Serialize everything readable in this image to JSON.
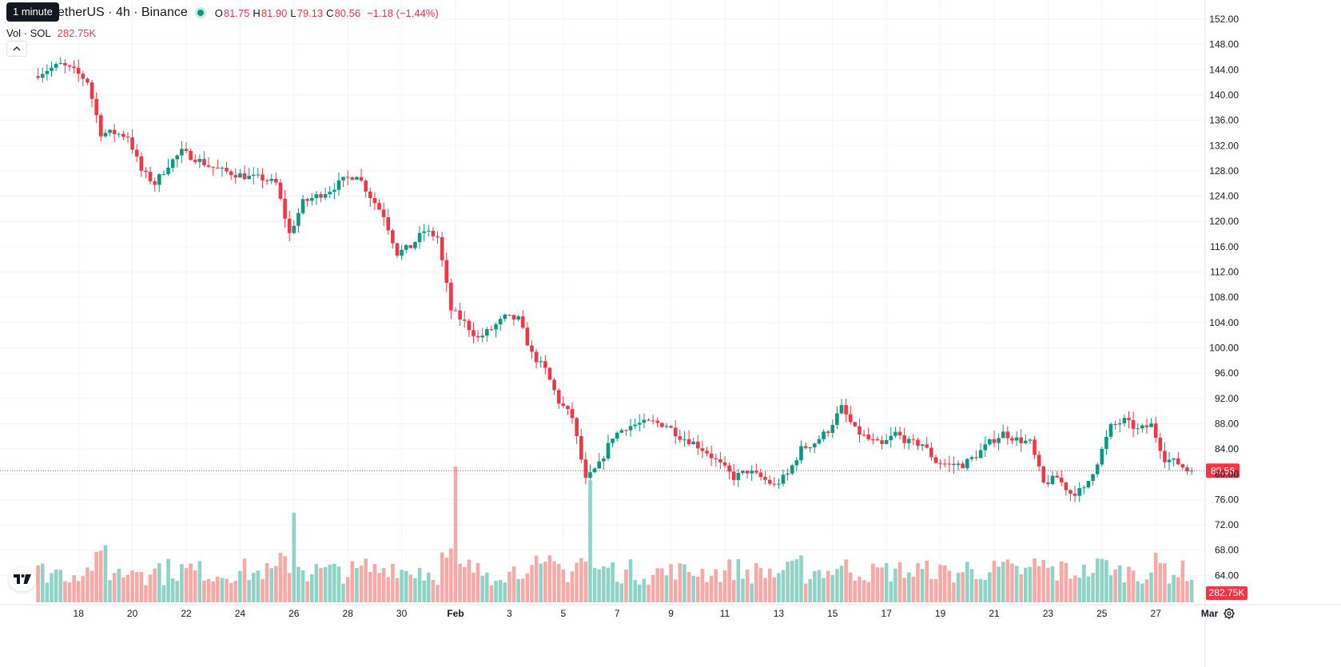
{
  "header": {
    "symbol_title": "TetherUS · 4h · Binance",
    "tooltip": "1 minute",
    "ohlc": {
      "open_label": "O",
      "open": "81.75",
      "high_label": "H",
      "high": "81.90",
      "low_label": "L",
      "low": "79.13",
      "close_label": "C",
      "close": "80.56",
      "change": "−1.18 (−1.44%)"
    },
    "volume": {
      "label": "Vol · SOL",
      "value": "282.75K"
    },
    "collapse_icon": "chevron-up-icon"
  },
  "colors": {
    "up": "#089981",
    "down": "#F23645",
    "up_volume": "#8fd3c6",
    "down_volume": "#f7a9a7",
    "grid": "#f0f3fa",
    "axis_text": "#131722",
    "price_line": "#F23645"
  },
  "chart_data": {
    "type": "candlestick",
    "interval": "4h",
    "y_axis": {
      "range": [
        58,
        154
      ],
      "ticks": [
        "152.00",
        "148.00",
        "144.00",
        "140.00",
        "136.00",
        "132.00",
        "128.00",
        "124.00",
        "120.00",
        "116.00",
        "112.00",
        "108.00",
        "104.00",
        "100.00",
        "96.00",
        "92.00",
        "88.00",
        "84.00",
        "80.00",
        "76.00",
        "72.00",
        "68.00",
        "64.00",
        "60.00"
      ]
    },
    "x_axis": {
      "tick_labels": [
        "18",
        "20",
        "22",
        "24",
        "26",
        "28",
        "30",
        "Feb",
        "3",
        "5",
        "7",
        "9",
        "11",
        "13",
        "15",
        "17",
        "19",
        "21",
        "23",
        "25",
        "27",
        "Mar"
      ],
      "tick_days": [
        1,
        3,
        5,
        7,
        9,
        11,
        13,
        15,
        17,
        19,
        21,
        23,
        25,
        27,
        29,
        31,
        33,
        35,
        37,
        39,
        41,
        43
      ]
    },
    "last_price": {
      "value": 80.56,
      "label": "80.56"
    },
    "last_volume": {
      "label": "282.75K"
    },
    "volume_max": 1.0,
    "daily_path": [
      {
        "day": -0.5,
        "price": 143.0
      },
      {
        "day": 0.0,
        "price": 144.0
      },
      {
        "day": 0.5,
        "price": 144.8
      },
      {
        "day": 1.0,
        "price": 143.8
      },
      {
        "day": 1.5,
        "price": 142.2
      },
      {
        "day": 2.0,
        "price": 134.0
      },
      {
        "day": 2.5,
        "price": 134.0
      },
      {
        "day": 3.0,
        "price": 133.5
      },
      {
        "day": 3.5,
        "price": 128.0
      },
      {
        "day": 4.0,
        "price": 126.0
      },
      {
        "day": 4.5,
        "price": 129.0
      },
      {
        "day": 5.0,
        "price": 131.0
      },
      {
        "day": 5.5,
        "price": 130.0
      },
      {
        "day": 6.0,
        "price": 128.8
      },
      {
        "day": 6.5,
        "price": 128.0
      },
      {
        "day": 7.0,
        "price": 127.5
      },
      {
        "day": 7.5,
        "price": 127.0
      },
      {
        "day": 8.0,
        "price": 126.8
      },
      {
        "day": 8.5,
        "price": 126.0
      },
      {
        "day": 9.0,
        "price": 118.0
      },
      {
        "day": 9.5,
        "price": 123.0
      },
      {
        "day": 10.0,
        "price": 124.0
      },
      {
        "day": 10.5,
        "price": 125.0
      },
      {
        "day": 11.0,
        "price": 126.5
      },
      {
        "day": 11.5,
        "price": 127.5
      },
      {
        "day": 12.0,
        "price": 124.0
      },
      {
        "day": 12.5,
        "price": 121.0
      },
      {
        "day": 13.0,
        "price": 115.0
      },
      {
        "day": 13.5,
        "price": 116.0
      },
      {
        "day": 14.0,
        "price": 118.5
      },
      {
        "day": 14.5,
        "price": 117.5
      },
      {
        "day": 15.0,
        "price": 106.0
      },
      {
        "day": 15.5,
        "price": 104.0
      },
      {
        "day": 16.0,
        "price": 101.5
      },
      {
        "day": 16.5,
        "price": 103.0
      },
      {
        "day": 17.0,
        "price": 104.8
      },
      {
        "day": 17.5,
        "price": 104.5
      },
      {
        "day": 18.0,
        "price": 99.0
      },
      {
        "day": 18.5,
        "price": 96.5
      },
      {
        "day": 19.0,
        "price": 91.5
      },
      {
        "day": 19.5,
        "price": 89.0
      },
      {
        "day": 20.0,
        "price": 79.0
      },
      {
        "day": 20.5,
        "price": 81.5
      },
      {
        "day": 21.0,
        "price": 86.0
      },
      {
        "day": 21.5,
        "price": 87.5
      },
      {
        "day": 22.0,
        "price": 88.0
      },
      {
        "day": 22.5,
        "price": 88.2
      },
      {
        "day": 23.0,
        "price": 87.8
      },
      {
        "day": 23.5,
        "price": 86.0
      },
      {
        "day": 24.0,
        "price": 85.0
      },
      {
        "day": 24.5,
        "price": 83.5
      },
      {
        "day": 25.0,
        "price": 81.5
      },
      {
        "day": 25.5,
        "price": 79.5
      },
      {
        "day": 26.0,
        "price": 80.5
      },
      {
        "day": 26.5,
        "price": 79.5
      },
      {
        "day": 27.0,
        "price": 78.2
      },
      {
        "day": 27.5,
        "price": 80.0
      },
      {
        "day": 28.0,
        "price": 84.0
      },
      {
        "day": 28.5,
        "price": 85.0
      },
      {
        "day": 29.0,
        "price": 87.0
      },
      {
        "day": 29.5,
        "price": 90.5
      },
      {
        "day": 30.0,
        "price": 87.0
      },
      {
        "day": 30.5,
        "price": 85.5
      },
      {
        "day": 31.0,
        "price": 84.5
      },
      {
        "day": 31.5,
        "price": 86.5
      },
      {
        "day": 32.0,
        "price": 85.0
      },
      {
        "day": 32.5,
        "price": 84.8
      },
      {
        "day": 33.0,
        "price": 82.0
      },
      {
        "day": 33.5,
        "price": 81.5
      },
      {
        "day": 34.0,
        "price": 81.5
      },
      {
        "day": 34.5,
        "price": 83.0
      },
      {
        "day": 35.0,
        "price": 85.0
      },
      {
        "day": 35.5,
        "price": 86.5
      },
      {
        "day": 36.0,
        "price": 85.5
      },
      {
        "day": 36.5,
        "price": 85.0
      },
      {
        "day": 37.0,
        "price": 78.5
      },
      {
        "day": 37.5,
        "price": 79.5
      },
      {
        "day": 38.0,
        "price": 77.0
      },
      {
        "day": 38.5,
        "price": 77.5
      },
      {
        "day": 39.0,
        "price": 82.0
      },
      {
        "day": 39.5,
        "price": 87.5
      },
      {
        "day": 40.0,
        "price": 88.5
      },
      {
        "day": 40.5,
        "price": 87.0
      },
      {
        "day": 41.0,
        "price": 87.8
      },
      {
        "day": 41.5,
        "price": 82.5
      },
      {
        "day": 42.0,
        "price": 81.75
      },
      {
        "day": 42.35,
        "price": 80.56
      }
    ],
    "volume_spikes": [
      {
        "day": 2.0,
        "size": 0.42
      },
      {
        "day": 9.0,
        "size": 0.66
      },
      {
        "day": 15.0,
        "size": 1.0
      },
      {
        "day": 20.0,
        "size": 0.9
      }
    ]
  }
}
